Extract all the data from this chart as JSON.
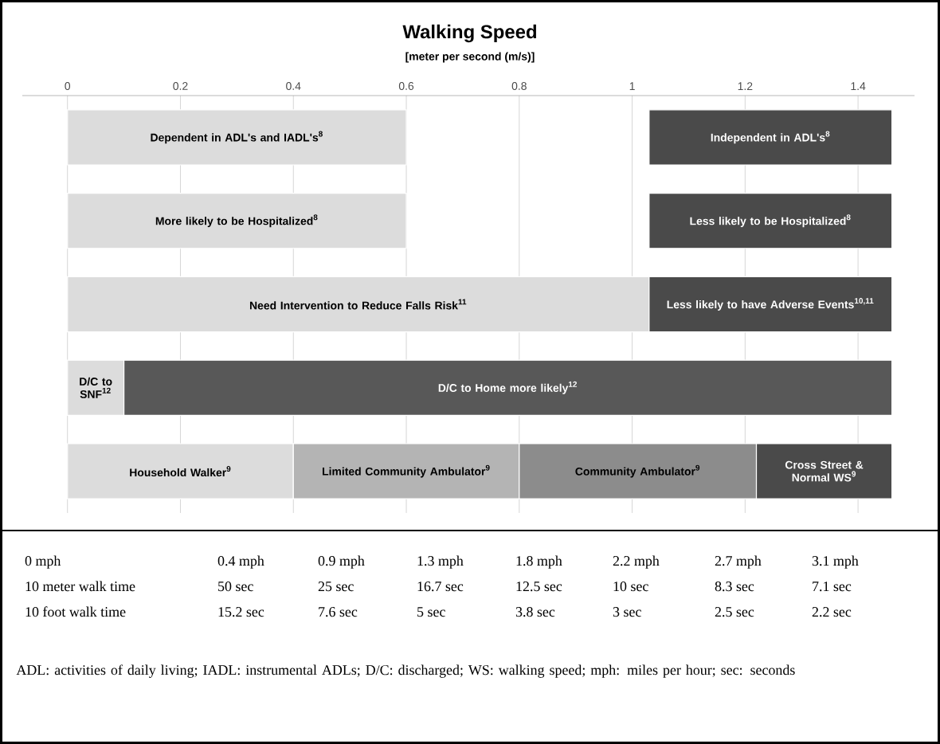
{
  "chart_data": {
    "type": "bar",
    "orientation": "horizontal",
    "title": "Walking Speed",
    "subtitle": "[meter per second (m/s)]",
    "categories": [
      null,
      null,
      null,
      null,
      null
    ],
    "xlim": [
      -0.08,
      1.5
    ],
    "xticks": [
      0,
      0.2,
      0.4,
      0.6,
      0.8,
      1,
      1.2,
      1.4
    ],
    "grid": "x",
    "series": [
      {
        "name": "Dependent in ADL's and IADL's$^{8}$",
        "color": "#dcdcdc",
        "base": [
          0,
          null,
          null,
          null,
          null
        ],
        "values": [
          0.6,
          null,
          null,
          null,
          null
        ]
      },
      {
        "name": "Independent in ADL's$^{8}$",
        "color": "#4a4a4a",
        "base": [
          1.03,
          null,
          null,
          null,
          null
        ],
        "values": [
          0.43,
          null,
          null,
          null,
          null
        ]
      },
      {
        "name": "More likely to be Hospitalized$^{8}$",
        "color": "#dcdcdc",
        "base": [
          null,
          0,
          null,
          null,
          null
        ],
        "values": [
          null,
          0.6,
          null,
          null,
          null
        ]
      },
      {
        "name": "Less likely to be Hospitalized$^{8}$",
        "color": "#4a4a4a",
        "base": [
          null,
          1.03,
          null,
          null,
          null
        ],
        "values": [
          null,
          0.43,
          null,
          null,
          null
        ]
      },
      {
        "name": "Need Intervention to Reduce Falls Risk$^{11}$",
        "color": "#dcdcdc",
        "base": [
          null,
          null,
          0,
          null,
          null
        ],
        "values": [
          null,
          null,
          1.03,
          null,
          null
        ]
      },
      {
        "name": "Less likely to have Adverse Events$^{10,11}$",
        "color": "#4a4a4a",
        "base": [
          null,
          null,
          1.03,
          null,
          null
        ],
        "values": [
          null,
          null,
          0.43,
          null,
          null
        ]
      },
      {
        "name": "D/C to SNF$^{12}$",
        "color": "#dcdcdc",
        "base": [
          null,
          null,
          null,
          0,
          null
        ],
        "values": [
          null,
          null,
          null,
          0.1,
          null
        ]
      },
      {
        "name": "D/C to Home more likely$^{12}$",
        "color": "#585858",
        "base": [
          null,
          null,
          null,
          0.1,
          null
        ],
        "values": [
          null,
          null,
          null,
          1.36,
          null
        ]
      },
      {
        "name": "Household Walker$^{9}$",
        "color": "#dcdcdc",
        "base": [
          null,
          null,
          null,
          null,
          0
        ],
        "values": [
          null,
          null,
          null,
          null,
          0.4
        ]
      },
      {
        "name": "Limited Community Ambulator$^{9}$",
        "color": "#b4b4b4",
        "base": [
          null,
          null,
          null,
          null,
          0.4
        ],
        "values": [
          null,
          null,
          null,
          null,
          0.4
        ]
      },
      {
        "name": "Community Ambulator$^{9}$",
        "color": "#8c8c8c",
        "base": [
          null,
          null,
          null,
          null,
          0.8
        ],
        "values": [
          null,
          null,
          null,
          null,
          0.42
        ]
      },
      {
        "name": "Cross Street & Normal WS$^{9}$",
        "color": "#4a4a4a",
        "base": [
          null,
          null,
          null,
          null,
          1.22
        ],
        "values": [
          null,
          null,
          null,
          null,
          0.24
        ]
      }
    ],
    "annotations": [
      "0 mph",
      "0.4 mph",
      "0.9 mph",
      "1.3 mph",
      "1.8 mph",
      "2.2 mph",
      "2.7 mph",
      "3.1 mph",
      "10 meter walk time",
      "50 sec",
      "25 sec",
      "16.7 sec",
      "12.5 sec",
      "10 sec",
      "8.3 sec",
      "7.1 sec",
      "10 foot walk time",
      "15.2 sec",
      "7.6 sec",
      "5 sec",
      "3.8 sec",
      "3 sec",
      "2.5 sec",
      "2.2 sec",
      "ADL:  activities of daily living; IADL:  instrumental ADLs; D/C:  discharged; WS:  walking speed; mph: miles per hour; sec: seconds"
    ]
  }
}
